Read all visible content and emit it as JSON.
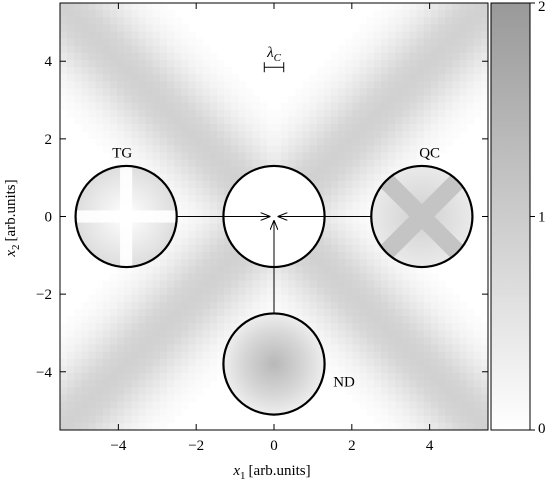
{
  "chart_data": {
    "type": "heatmap",
    "title": "",
    "xlabel_symbol": "x",
    "xlabel_subscript": "1",
    "xlabel_unit": "[arb.units]",
    "ylabel_symbol": "x",
    "ylabel_subscript": "2",
    "ylabel_unit": "[arb.units]",
    "xlim": [
      -5.5,
      5.5
    ],
    "ylim": [
      -5.5,
      5.5
    ],
    "xticks": [
      -4,
      -2,
      0,
      2,
      4
    ],
    "yticks": [
      -4,
      -2,
      0,
      2,
      4
    ],
    "xtick_labels": [
      "−4",
      "−2",
      "0",
      "2",
      "4"
    ],
    "ytick_labels": [
      "−4",
      "−2",
      "0",
      "2",
      "4"
    ],
    "colorbar": {
      "ticks": [
        0,
        1,
        2
      ],
      "tick_labels": [
        "0",
        "1",
        "2"
      ],
      "range": [
        0,
        2
      ],
      "colormap": "white-to-gray",
      "color_low": "#ffffff",
      "color_high": "#999999"
    },
    "background_pattern": {
      "description_kind": "diagonal-bands",
      "band_direction_1": [
        1,
        1
      ],
      "band_direction_2": [
        1,
        -1
      ],
      "band_intensity": 0.45,
      "band_half_width": 1.1
    },
    "scale_marker": {
      "label_symbol": "λ",
      "label_subscript": "C",
      "x_from": -0.25,
      "x_to": 0.25,
      "y": 4
    },
    "circles": [
      {
        "id": "TG",
        "label": "TG",
        "cx": -3.8,
        "cy": 0,
        "r": 1.3,
        "label_x": -3.9,
        "label_y": 1.65
      },
      {
        "id": "center",
        "label": "",
        "cx": 0,
        "cy": 0,
        "r": 1.3,
        "label_x": 0,
        "label_y": 0
      },
      {
        "id": "QC",
        "label": "QC",
        "cx": 3.8,
        "cy": 0,
        "r": 1.3,
        "label_x": 4.0,
        "label_y": 1.65
      },
      {
        "id": "ND",
        "label": "ND",
        "cx": 0,
        "cy": -3.8,
        "r": 1.3,
        "label_x": 1.8,
        "label_y": -4.25
      }
    ],
    "arrows": [
      {
        "from": [
          -2.5,
          0
        ],
        "to": [
          -0.12,
          0
        ]
      },
      {
        "from": [
          2.5,
          0
        ],
        "to": [
          0.12,
          0
        ]
      },
      {
        "from": [
          0,
          -2.5
        ],
        "to": [
          0,
          -0.12
        ]
      }
    ]
  }
}
